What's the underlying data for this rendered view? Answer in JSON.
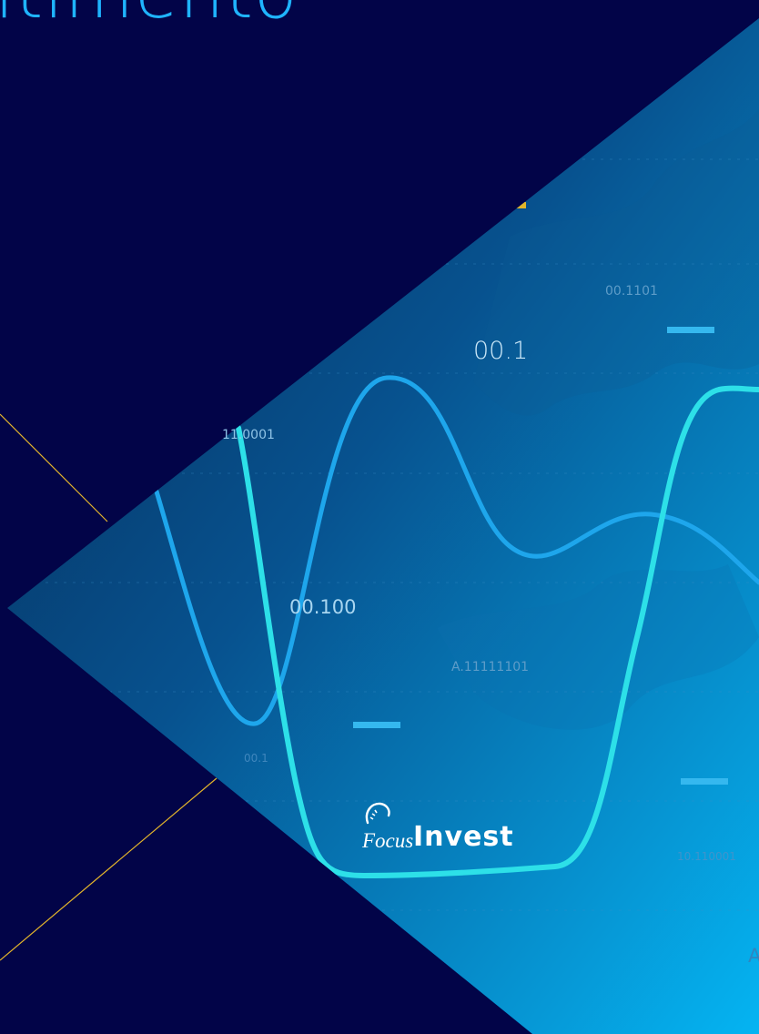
{
  "headline": "ltimento",
  "data_labels": [
    "00.1101",
    "00.1",
    "11.0001",
    "00.100",
    "A.11111101",
    "00.1",
    "10.110001",
    "A"
  ],
  "logo": {
    "script": "Focus",
    "brand": "Invest"
  },
  "colors": {
    "background": "#020448",
    "triangle_dark": "#063a70",
    "triangle_light": "#05aaf0",
    "curve_blue": "#1ea6ec",
    "curve_cyan": "#2de0e8",
    "accent_line": "#e3b52b",
    "headline": "#1fb4ff"
  },
  "icons": [
    "focus-invest-logo",
    "graph-line-icon"
  ]
}
